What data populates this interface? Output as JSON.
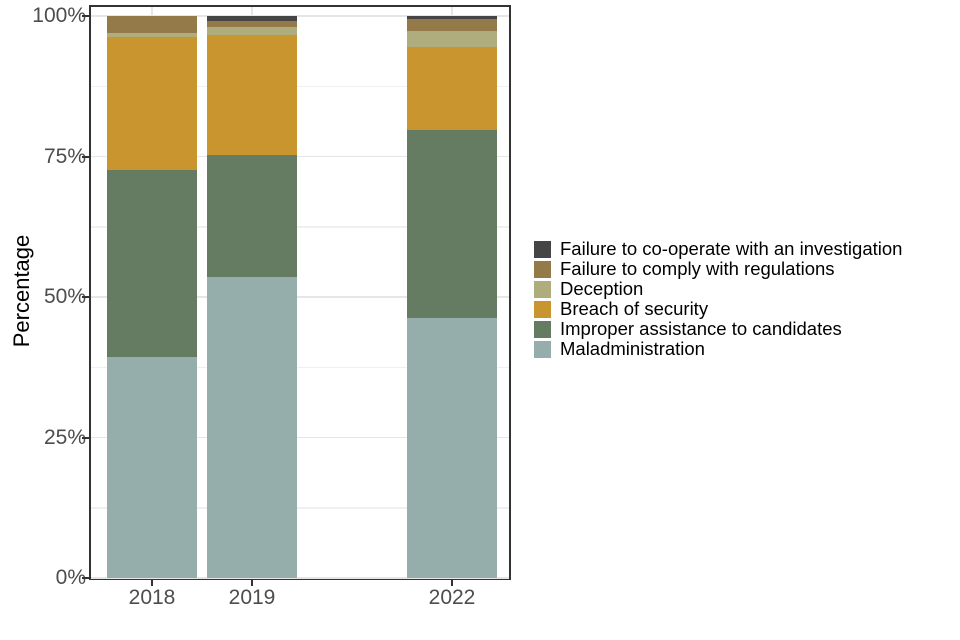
{
  "chart_data": {
    "type": "bar",
    "stacked": true,
    "normalized_to_percent": true,
    "title": "",
    "xlabel": "",
    "ylabel": "Percentage",
    "categories": [
      "2018",
      "2019",
      "2022"
    ],
    "category_slots": [
      0,
      1,
      3
    ],
    "slot_count": 4,
    "y_axis": {
      "range": [
        0,
        100
      ],
      "ticks_percent": [
        0,
        25,
        50,
        75,
        100
      ],
      "tick_labels": [
        "0%",
        "25%",
        "50%",
        "75%",
        "100%"
      ],
      "minor_gridlines_percent": [
        12.5,
        37.5,
        62.5,
        87.5
      ]
    },
    "series_bottom_to_top": [
      {
        "name": "Maladministration",
        "color": "#95AEAC",
        "values_percent": [
          39.4,
          53.6,
          46.3
        ]
      },
      {
        "name": "Improper assistance to candidates",
        "color": "#657B62",
        "values_percent": [
          33.2,
          21.7,
          33.4
        ]
      },
      {
        "name": "Breach of security",
        "color": "#C9952F",
        "values_percent": [
          23.7,
          21.3,
          14.7
        ]
      },
      {
        "name": "Deception",
        "color": "#AFAC7E",
        "values_percent": [
          0.7,
          1.4,
          3.0
        ]
      },
      {
        "name": "Failure to comply with regulations",
        "color": "#957A49",
        "values_percent": [
          3.0,
          1.1,
          2.1
        ]
      },
      {
        "name": "Failure to co-operate with an investigation",
        "color": "#454545",
        "values_percent": [
          0.0,
          0.9,
          0.5
        ]
      }
    ],
    "legend": {
      "position": "right",
      "order": "reverse_of_stack_top_to_bottom"
    },
    "grid": {
      "horizontal_major": true,
      "horizontal_minor": true,
      "vertical_at_category_centers": true
    }
  },
  "style_colors": {
    "panel_border": "#333333",
    "grid_major": "#E6E6E6",
    "grid_minor": "#F0F0F0",
    "tick_mark": "#333333",
    "tick_label": "#4D4D4D",
    "axis_title": "#000000",
    "legend_text": "#000000",
    "background": "#FFFFFF"
  }
}
